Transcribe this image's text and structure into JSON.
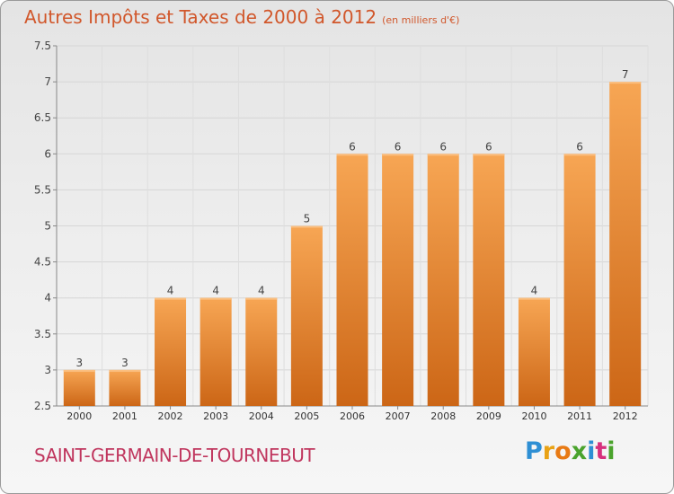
{
  "title": "Autres Impôts et Taxes de 2000 à 2012",
  "subtitle": "(en milliers d'€)",
  "commune": "SAINT-GERMAIN-DE-TOURNEBUT",
  "logo": {
    "letters": [
      "P",
      "r",
      "o",
      "x",
      "i",
      "t",
      "i"
    ],
    "colors": [
      "#2e8fd4",
      "#e9a214",
      "#e87a14",
      "#4aa32c",
      "#2e8fd4",
      "#d6317d",
      "#4aa32c"
    ]
  },
  "colors": {
    "bar_top": "#f7a654",
    "bar_bottom": "#cc6616",
    "title": "#d1572b",
    "commune": "#c0365e"
  },
  "chart_data": {
    "type": "bar",
    "categories": [
      "2000",
      "2001",
      "2002",
      "2003",
      "2004",
      "2005",
      "2006",
      "2007",
      "2008",
      "2009",
      "2010",
      "2011",
      "2012"
    ],
    "values": [
      3,
      3,
      4,
      4,
      4,
      5,
      6,
      6,
      6,
      6,
      4,
      6,
      7
    ],
    "labels": [
      "3",
      "3",
      "4",
      "4",
      "4",
      "5",
      "6",
      "6",
      "6",
      "6",
      "4",
      "6",
      "7"
    ],
    "ylim": [
      2.5,
      7.5
    ],
    "yticks": [
      "2.5",
      "3",
      "3.5",
      "4",
      "4.5",
      "5",
      "5.5",
      "6",
      "6.5",
      "7",
      "7.5"
    ],
    "grid": true,
    "xlabel": "",
    "ylabel": ""
  }
}
